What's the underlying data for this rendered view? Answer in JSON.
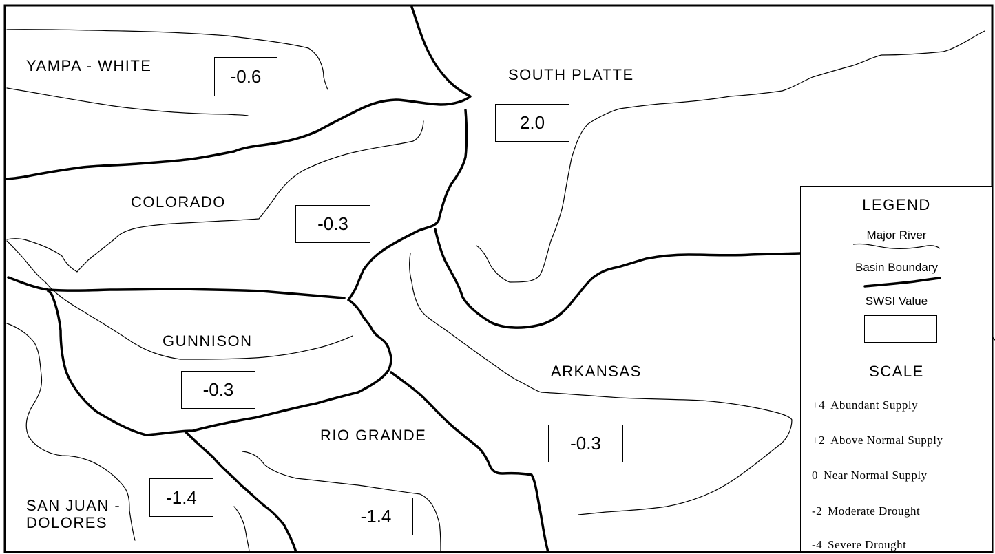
{
  "basins": [
    {
      "id": "yampa-white",
      "label": "YAMPA - WHITE",
      "swsi": "-0.6"
    },
    {
      "id": "south-platte",
      "label": "SOUTH PLATTE",
      "swsi": "2.0"
    },
    {
      "id": "colorado",
      "label": "COLORADO",
      "swsi": "-0.3"
    },
    {
      "id": "gunnison",
      "label": "GUNNISON",
      "swsi": "-0.3"
    },
    {
      "id": "arkansas",
      "label": "ARKANSAS",
      "swsi": "-0.3"
    },
    {
      "id": "rio-grande",
      "label": "RIO GRANDE",
      "swsi": "-1.4"
    },
    {
      "id": "san-juan-dolores",
      "label_line1": "SAN JUAN -",
      "label_line2": "DOLORES",
      "swsi": "-1.4"
    }
  ],
  "legend": {
    "title": "LEGEND",
    "major_river": "Major River",
    "basin_boundary": "Basin Boundary",
    "swsi_value": "SWSI Value",
    "scale_title": "SCALE",
    "scale": [
      {
        "value": "+4",
        "text": "Abundant Supply"
      },
      {
        "value": "+2",
        "text": "Above Normal Supply"
      },
      {
        "value": "0",
        "text": "Near Normal Supply"
      },
      {
        "value": "-2",
        "text": "Moderate Drought"
      },
      {
        "value": "-4",
        "text": "Severe Drought"
      }
    ]
  },
  "colors": {
    "line": "#000000",
    "background": "#ffffff"
  }
}
